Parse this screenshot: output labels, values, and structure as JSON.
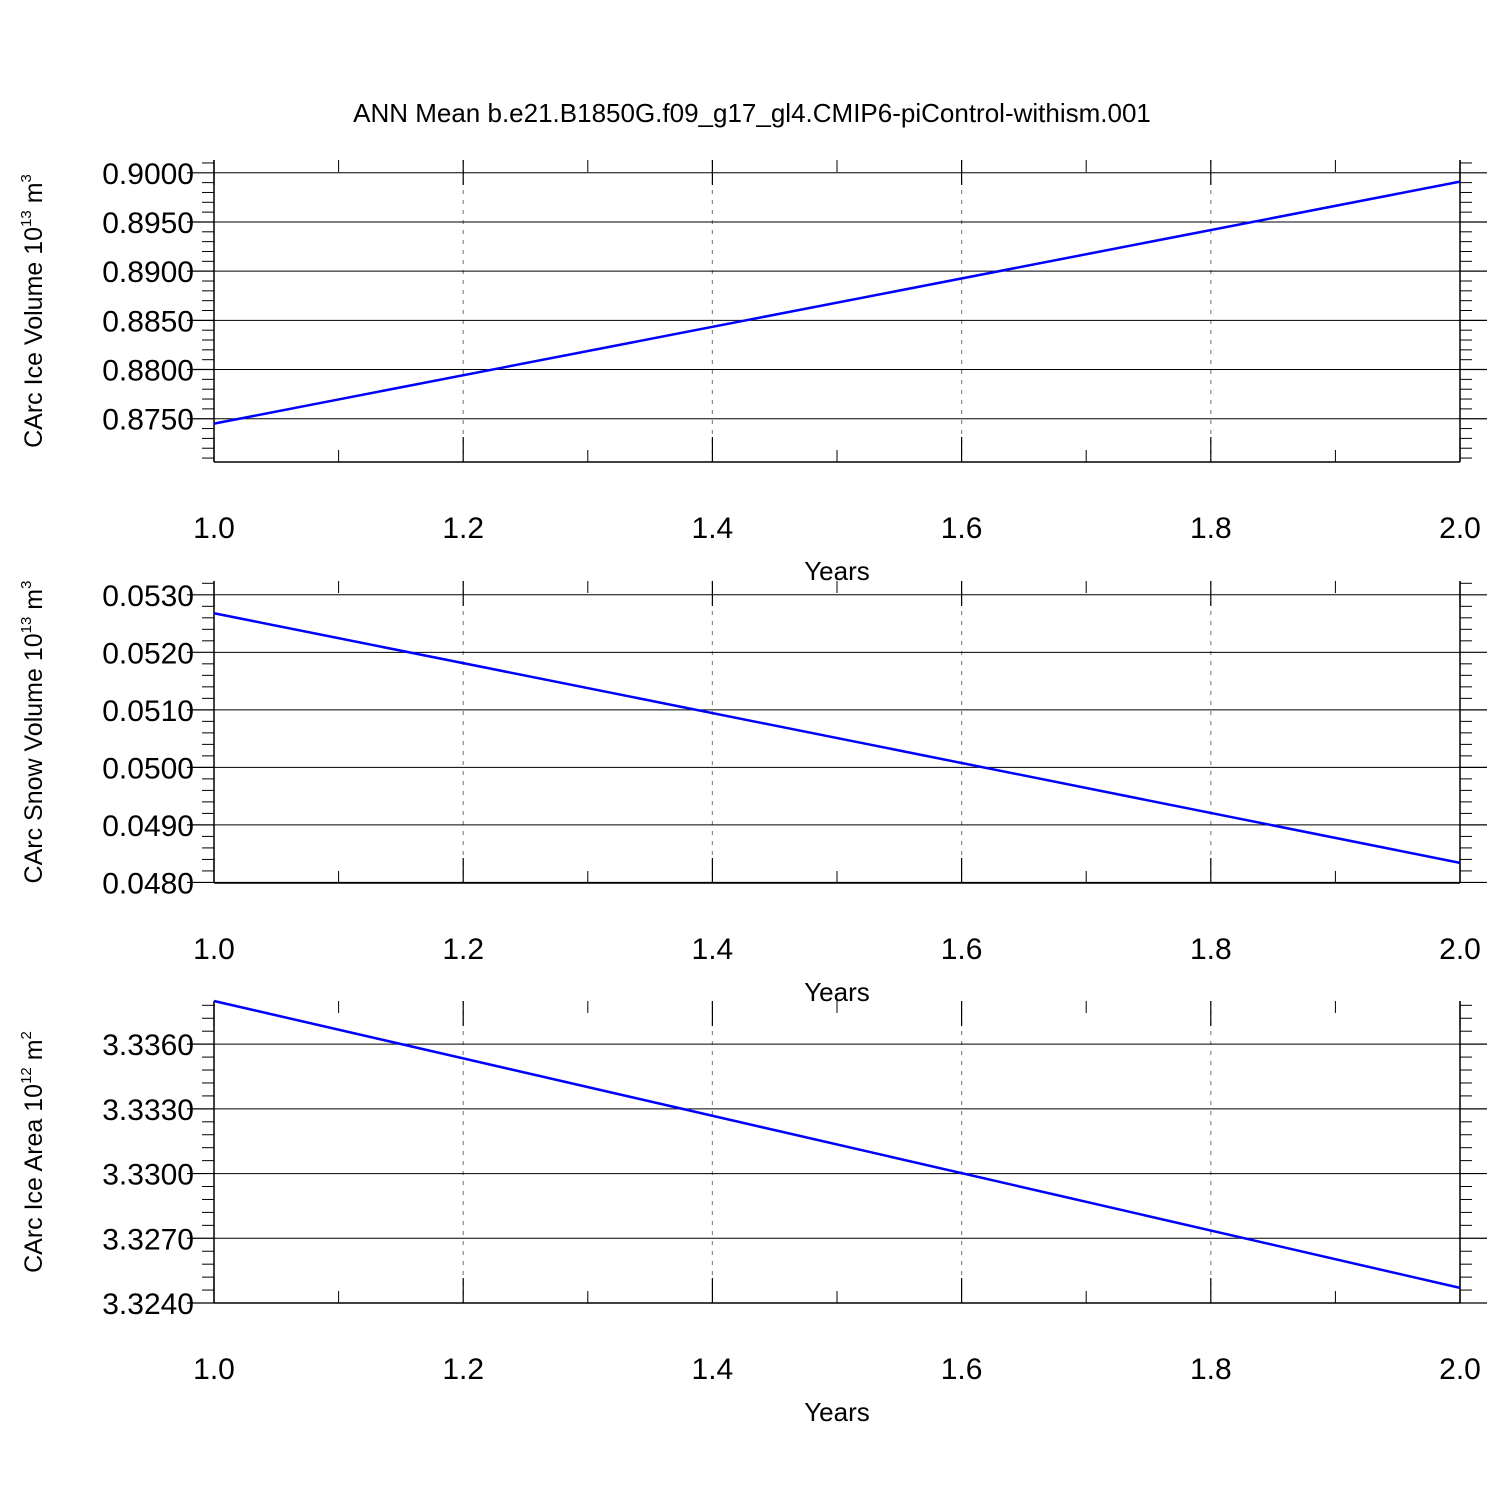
{
  "title": "ANN Mean b.e21.B1850G.f09_g17_gl4.CMIP6-piControl-withism.001",
  "colors": {
    "line": "#0000ff",
    "axis": "#000000",
    "grid": "#888888"
  },
  "chart_data": [
    {
      "type": "line",
      "ylabel_main": "CArc Ice Volume 10",
      "ylabel_exp": "13",
      "ylabel_unit": " m",
      "ylabel_unit_exp": "3",
      "xlabel": "Years",
      "x": [
        1.0,
        2.0
      ],
      "y": [
        0.8745,
        0.8991
      ],
      "xlim": [
        1.0,
        2.0
      ],
      "ylim": [
        0.8706,
        0.9013
      ],
      "xticks": [
        1.0,
        1.2,
        1.4,
        1.6,
        1.8,
        2.0
      ],
      "xtick_labels": [
        "1.0",
        "1.2",
        "1.4",
        "1.6",
        "1.8",
        "2.0"
      ],
      "yticks": [
        0.875,
        0.88,
        0.885,
        0.89,
        0.895,
        0.9
      ],
      "ytick_labels": [
        "0.8750",
        "0.8800",
        "0.8850",
        "0.8900",
        "0.8950",
        "0.9000"
      ],
      "yminor_step": 0.001,
      "grid": "vertical dashed",
      "series": [
        {
          "values": [
            0.8745,
            0.8991
          ]
        }
      ]
    },
    {
      "type": "line",
      "ylabel_main": "CArc Snow Volume 10",
      "ylabel_exp": "13",
      "ylabel_unit": " m",
      "ylabel_unit_exp": "3",
      "xlabel": "Years",
      "x": [
        1.0,
        2.0
      ],
      "y": [
        0.05268,
        0.04834
      ],
      "xlim": [
        1.0,
        2.0
      ],
      "ylim": [
        0.04799,
        0.05324
      ],
      "xticks": [
        1.0,
        1.2,
        1.4,
        1.6,
        1.8,
        2.0
      ],
      "xtick_labels": [
        "1.0",
        "1.2",
        "1.4",
        "1.6",
        "1.8",
        "2.0"
      ],
      "yticks": [
        0.048,
        0.049,
        0.05,
        0.051,
        0.052,
        0.053
      ],
      "ytick_labels": [
        "0.0480",
        "0.0490",
        "0.0500",
        "0.0510",
        "0.0520",
        "0.0530"
      ],
      "yminor_step": 0.0002,
      "grid": "vertical dashed",
      "series": [
        {
          "values": [
            0.05268,
            0.04834
          ]
        }
      ]
    },
    {
      "type": "line",
      "ylabel_main": "CArc Ice Area 10",
      "ylabel_exp": "12",
      "ylabel_unit": " m",
      "ylabel_unit_exp": "2",
      "xlabel": "Years",
      "x": [
        1.0,
        2.0
      ],
      "y": [
        3.338,
        3.3247
      ],
      "xlim": [
        1.0,
        2.0
      ],
      "ylim": [
        3.324,
        3.338
      ],
      "xticks": [
        1.0,
        1.2,
        1.4,
        1.6,
        1.8,
        2.0
      ],
      "xtick_labels": [
        "1.0",
        "1.2",
        "1.4",
        "1.6",
        "1.8",
        "2.0"
      ],
      "yticks": [
        3.324,
        3.327,
        3.33,
        3.333,
        3.336
      ],
      "ytick_labels": [
        "3.3240",
        "3.3270",
        "3.3300",
        "3.3330",
        "3.3360"
      ],
      "yminor_step": 0.0006,
      "grid": "vertical dashed",
      "series": [
        {
          "values": [
            3.338,
            3.3247
          ]
        }
      ]
    }
  ]
}
